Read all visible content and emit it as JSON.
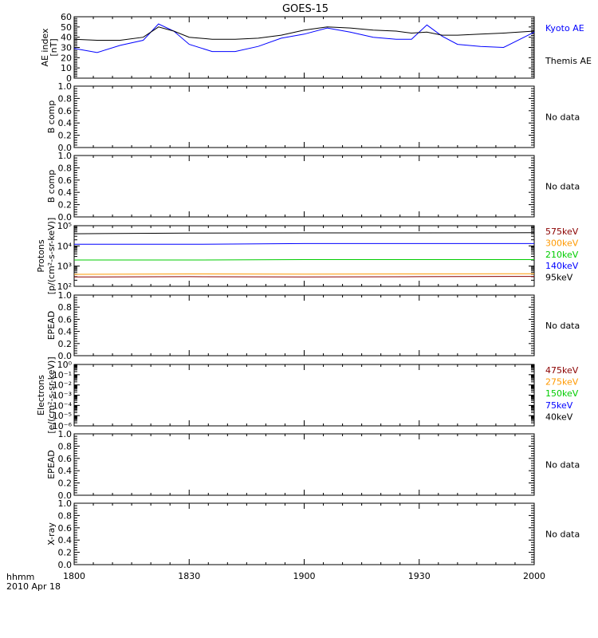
{
  "title": "GOES-15",
  "time_axis": {
    "labels": [
      "1800",
      "1830",
      "1900",
      "1930",
      "2000"
    ],
    "footer_units": "hhmm",
    "footer_date": "2010 Apr 18"
  },
  "colors": {
    "black": "#000000",
    "blue": "#0000ff",
    "green": "#00cc00",
    "orange": "#ff9900",
    "darkred": "#8b0000"
  },
  "chart_data": [
    {
      "id": "ae",
      "type": "line",
      "ylabel": "AE index [nT]",
      "ylim": [
        0,
        60
      ],
      "yticks": [
        0,
        10,
        20,
        30,
        40,
        50,
        60
      ],
      "x_minutes": [
        0,
        6,
        12,
        18,
        22,
        26,
        30,
        36,
        42,
        48,
        54,
        60,
        66,
        72,
        78,
        84,
        88,
        92,
        96,
        100,
        106,
        112,
        120
      ],
      "series": [
        {
          "name": "Kyoto AE",
          "color": "blue",
          "values": [
            29,
            25,
            32,
            37,
            53,
            46,
            33,
            26,
            26,
            31,
            39,
            43,
            49,
            45,
            40,
            38,
            38,
            52,
            41,
            33,
            31,
            30,
            45
          ]
        },
        {
          "name": "Themis AE",
          "color": "black",
          "values": [
            38,
            37,
            37,
            40,
            50,
            46,
            40,
            38,
            38,
            39,
            42,
            47,
            50,
            49,
            47,
            46,
            44,
            45,
            42,
            42,
            43,
            44,
            46
          ]
        }
      ]
    },
    {
      "id": "b1",
      "type": "line",
      "ylabel": "B comp",
      "ylim": [
        0,
        1
      ],
      "yticks": [
        0.0,
        0.2,
        0.4,
        0.6,
        0.8,
        1.0
      ],
      "status": "No data"
    },
    {
      "id": "b2",
      "type": "line",
      "ylabel": "B comp",
      "ylim": [
        0,
        1
      ],
      "yticks": [
        0.0,
        0.2,
        0.4,
        0.6,
        0.8,
        1.0
      ],
      "status": "No data"
    },
    {
      "id": "protons",
      "type": "line",
      "log_scale": true,
      "ylabel_lines": [
        "Protons",
        "[p/(cm²-s-sr-keV)]"
      ],
      "ylim": [
        100,
        100000
      ],
      "yticks": [
        "10²",
        "10³",
        "10⁴",
        "10⁵"
      ],
      "x_minutes": [
        0,
        30,
        60,
        90,
        120
      ],
      "series": [
        {
          "name": "575keV",
          "color": "darkred",
          "values": [
            290,
            300,
            290,
            300,
            310
          ]
        },
        {
          "name": "300keV",
          "color": "orange",
          "values": [
            390,
            410,
            400,
            410,
            420
          ]
        },
        {
          "name": "210keV",
          "color": "green",
          "values": [
            2000,
            2000,
            2100,
            2100,
            2100
          ]
        },
        {
          "name": "140keV",
          "color": "blue",
          "values": [
            12000,
            12000,
            13000,
            13000,
            13000
          ]
        },
        {
          "name": "95keV",
          "color": "black",
          "values": [
            40000,
            43000,
            44000,
            44000,
            45000
          ]
        }
      ]
    },
    {
      "id": "epead1",
      "type": "line",
      "ylabel": "EPEAD",
      "ylim": [
        0,
        1
      ],
      "yticks": [
        0.0,
        0.2,
        0.4,
        0.6,
        0.8,
        1.0
      ],
      "status": "No data"
    },
    {
      "id": "electrons",
      "type": "line",
      "log_scale": true,
      "ylabel_lines": [
        "Electrons",
        "[e/(cm²-s-sr-keV)]"
      ],
      "ylim": [
        1e-06,
        1
      ],
      "yticks": [
        "10⁻⁶",
        "10⁻⁵",
        "10⁻⁴",
        "10⁻³",
        "10⁻²",
        "10⁻¹",
        "10⁰"
      ],
      "series": [
        {
          "name": "475keV",
          "color": "darkred"
        },
        {
          "name": "275keV",
          "color": "orange"
        },
        {
          "name": "150keV",
          "color": "green"
        },
        {
          "name": "75keV",
          "color": "blue"
        },
        {
          "name": "40keV",
          "color": "black"
        }
      ]
    },
    {
      "id": "epead2",
      "type": "line",
      "ylabel": "EPEAD",
      "ylim": [
        0,
        1
      ],
      "yticks": [
        0.0,
        0.2,
        0.4,
        0.6,
        0.8,
        1.0
      ],
      "status": "No data"
    },
    {
      "id": "xray",
      "type": "line",
      "ylabel": "X-ray",
      "ylim": [
        0,
        1
      ],
      "yticks": [
        0.0,
        0.2,
        0.4,
        0.6,
        0.8,
        1.0
      ],
      "status": "No data"
    }
  ]
}
